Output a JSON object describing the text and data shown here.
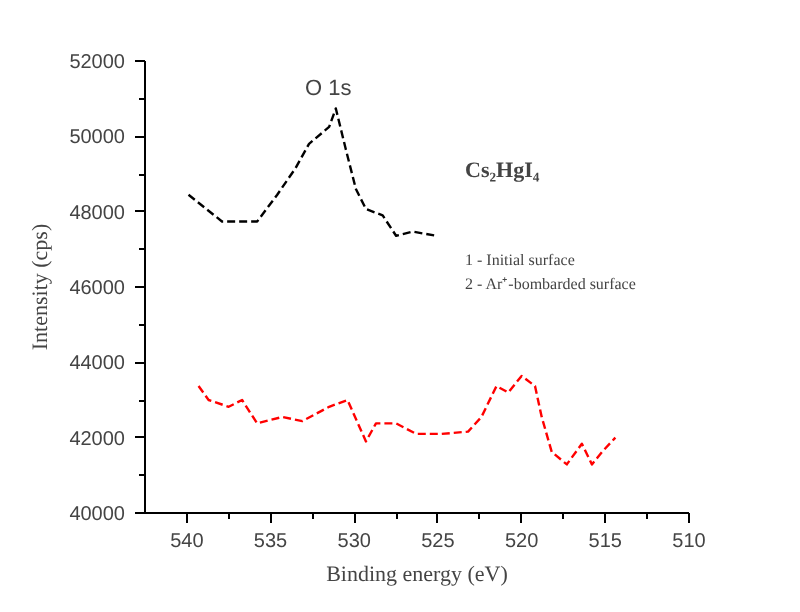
{
  "chart_data": {
    "type": "line",
    "xlabel": "Binding energy (eV)",
    "ylabel": "Intensity (cps)",
    "xlim": [
      542.5,
      510
    ],
    "ylim": [
      40000,
      52000
    ],
    "xticks": [
      540,
      535,
      530,
      525,
      520,
      515,
      510
    ],
    "yticks": [
      40000,
      42000,
      44000,
      46000,
      48000,
      50000,
      52000
    ],
    "grid": false,
    "line_style": "dashed",
    "series": [
      {
        "color": "#000000",
        "x": [
          539.9,
          537.9,
          535.8,
          534.6,
          533.5,
          532.7,
          531.5,
          531.1,
          530.5,
          529.9,
          529.3,
          528.3,
          527.5,
          526.5,
          525.1
        ],
        "values": [
          48450,
          47740,
          47740,
          48450,
          49160,
          49800,
          50250,
          50740,
          49650,
          48600,
          48070,
          47900,
          47360,
          47470,
          47360
        ]
      },
      {
        "color": "#ff0000",
        "x": [
          539.3,
          538.7,
          537.5,
          536.7,
          535.8,
          534.3,
          533.1,
          531.5,
          530.4,
          529.3,
          528.7,
          527.5,
          526.3,
          524.8,
          523.2,
          522.4,
          521.5,
          520.8,
          520.0,
          519.2,
          518.8,
          518.2,
          517.3,
          516.4,
          515.8,
          515.2,
          514.4
        ],
        "values": [
          43370,
          43000,
          42820,
          43000,
          42380,
          42550,
          42440,
          42820,
          43000,
          41900,
          42380,
          42380,
          42100,
          42100,
          42160,
          42550,
          43370,
          43200,
          43640,
          43370,
          42550,
          41620,
          41290,
          41840,
          41290,
          41620,
          42000
        ]
      }
    ],
    "annotations": [
      "O 1s",
      "Cs₂HgI₄",
      "1 - Initial surface",
      "2 - Ar⁺-bombarded surface"
    ]
  }
}
